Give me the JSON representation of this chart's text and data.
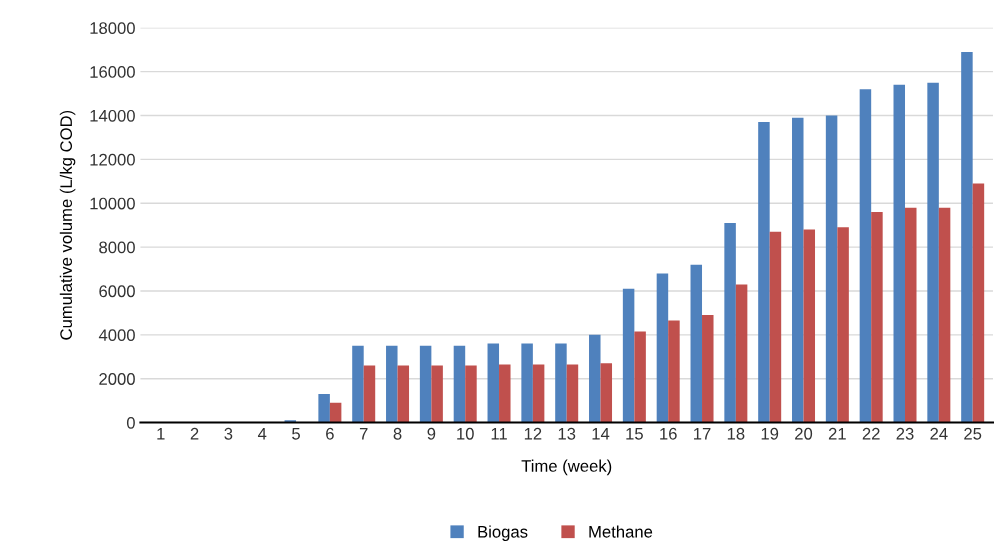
{
  "chart_data": {
    "type": "bar",
    "xlabel": "Time (week)",
    "ylabel": "Cumulative volume (L/kg COD)",
    "categories": [
      "1",
      "2",
      "3",
      "4",
      "5",
      "6",
      "7",
      "8",
      "9",
      "10",
      "11",
      "12",
      "13",
      "14",
      "15",
      "16",
      "17",
      "18",
      "19",
      "20",
      "21",
      "22",
      "23",
      "24",
      "25"
    ],
    "series": [
      {
        "name": "Biogas",
        "color": "#4f81bd",
        "values": [
          0,
          0,
          0,
          0,
          100,
          1300,
          3500,
          3500,
          3500,
          3500,
          3600,
          3600,
          3600,
          4000,
          6100,
          6800,
          7200,
          9100,
          13700,
          13900,
          14000,
          15200,
          15400,
          15500,
          16900
        ]
      },
      {
        "name": "Methane",
        "color": "#c0504d",
        "values": [
          0,
          0,
          0,
          0,
          0,
          900,
          2600,
          2600,
          2600,
          2600,
          2650,
          2650,
          2650,
          2700,
          4150,
          4650,
          4900,
          6300,
          8700,
          8800,
          8900,
          9600,
          9800,
          9800,
          10900
        ]
      }
    ],
    "ylim": [
      0,
      18000
    ],
    "yticks": [
      0,
      2000,
      4000,
      6000,
      8000,
      10000,
      12000,
      14000,
      16000,
      18000
    ],
    "grid": "y",
    "legend": "bottom"
  }
}
